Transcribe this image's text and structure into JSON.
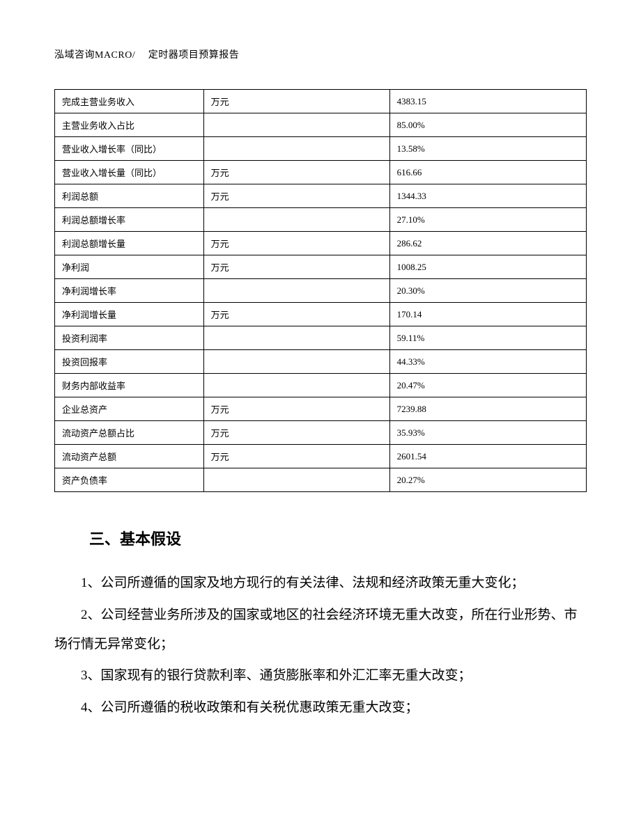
{
  "header": "泓域咨询MACRO/　 定时器项目预算报告",
  "table": {
    "rows": [
      {
        "label": "完成主营业务收入",
        "unit": "万元",
        "value": "4383.15"
      },
      {
        "label": "主营业务收入占比",
        "unit": "",
        "value": "85.00%"
      },
      {
        "label": "营业收入增长率（同比）",
        "unit": "",
        "value": "13.58%"
      },
      {
        "label": "营业收入增长量（同比）",
        "unit": "万元",
        "value": "616.66"
      },
      {
        "label": "利润总额",
        "unit": "万元",
        "value": "1344.33"
      },
      {
        "label": "利润总额增长率",
        "unit": "",
        "value": "27.10%"
      },
      {
        "label": "利润总额增长量",
        "unit": "万元",
        "value": "286.62"
      },
      {
        "label": "净利润",
        "unit": "万元",
        "value": "1008.25"
      },
      {
        "label": "净利润增长率",
        "unit": "",
        "value": "20.30%"
      },
      {
        "label": "净利润增长量",
        "unit": "万元",
        "value": "170.14"
      },
      {
        "label": "投资利润率",
        "unit": "",
        "value": "59.11%"
      },
      {
        "label": "投资回报率",
        "unit": "",
        "value": "44.33%"
      },
      {
        "label": "财务内部收益率",
        "unit": "",
        "value": "20.47%"
      },
      {
        "label": "企业总资产",
        "unit": "万元",
        "value": "7239.88"
      },
      {
        "label": "流动资产总额占比",
        "unit": "万元",
        "value": "35.93%"
      },
      {
        "label": "流动资产总额",
        "unit": "万元",
        "value": "2601.54"
      },
      {
        "label": "资产负债率",
        "unit": "",
        "value": "20.27%"
      }
    ],
    "column_widths": [
      "28%",
      "35%",
      "37%"
    ],
    "border_color": "#000000",
    "font_size": 13,
    "cell_padding": "7px 10px"
  },
  "section": {
    "heading": "三、基本假设",
    "heading_fontsize": 22,
    "heading_fontweight": "bold",
    "paragraphs": [
      "1、公司所遵循的国家及地方现行的有关法律、法规和经济政策无重大变化；",
      "2、公司经营业务所涉及的国家或地区的社会经济环境无重大改变，所在行业形势、市场行情无异常变化；",
      "3、国家现有的银行贷款利率、通货膨胀率和外汇汇率无重大改变；",
      "4、公司所遵循的税收政策和有关税优惠政策无重大改变；"
    ],
    "paragraph_fontsize": 19,
    "paragraph_lineheight": 2.2
  },
  "colors": {
    "background": "#ffffff",
    "text": "#000000",
    "border": "#000000"
  }
}
